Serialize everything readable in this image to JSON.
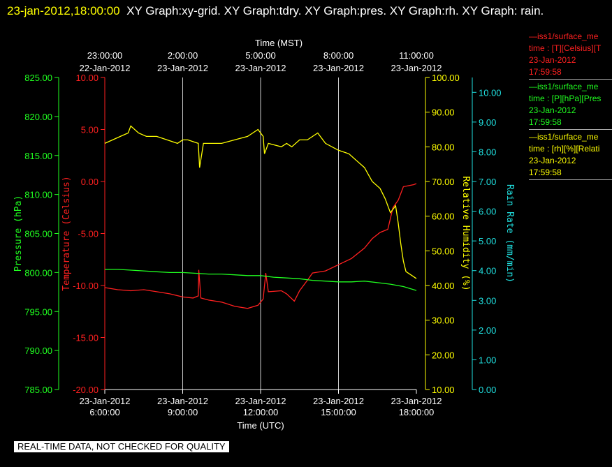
{
  "header": {
    "timestamp": "23-jan-2012,18:00:00",
    "graphs": "XY Graph:xy-grid.  XY Graph:tdry.  XY Graph:pres.  XY Graph:rh.  XY Graph: rain."
  },
  "legend": [
    {
      "line1": "—iss1/surface_me",
      "line2": "time : [T][Celsius][T",
      "date": "23-Jan-2012",
      "time": "17:59:58",
      "color": "#ff2020"
    },
    {
      "line1": "—iss1/surface_me",
      "line2": "time : [P][hPa][Pres",
      "date": "23-Jan-2012",
      "time": "17:59:58",
      "color": "#20ff20"
    },
    {
      "line1": "—iss1/surface_me",
      "line2": "time : [rh][%][Relati",
      "date": "23-Jan-2012",
      "time": "17:59:58",
      "color": "#ffff00"
    }
  ],
  "notice": "REAL-TIME DATA, NOT CHECKED FOR QUALITY",
  "chart_data": {
    "type": "line",
    "title": "",
    "x_top_title": "Time (MST)",
    "x_bottom_title": "Time (UTC)",
    "x_range_hours": [
      0,
      12
    ],
    "x_bottom_ticks": [
      {
        "h": 0,
        "date": "23-Jan-2012",
        "time": "6:00:00"
      },
      {
        "h": 3,
        "date": "23-Jan-2012",
        "time": "9:00:00"
      },
      {
        "h": 6,
        "date": "23-Jan-2012",
        "time": "12:00:00"
      },
      {
        "h": 9,
        "date": "23-Jan-2012",
        "time": "15:00:00"
      },
      {
        "h": 12,
        "date": "23-Jan-2012",
        "time": "18:00:00"
      }
    ],
    "x_top_ticks": [
      {
        "h": 0,
        "time": "23:00:00",
        "date": "22-Jan-2012"
      },
      {
        "h": 3,
        "time": "2:00:00",
        "date": "23-Jan-2012"
      },
      {
        "h": 6,
        "time": "5:00:00",
        "date": "23-Jan-2012"
      },
      {
        "h": 9,
        "time": "8:00:00",
        "date": "23-Jan-2012"
      },
      {
        "h": 12,
        "time": "11:00:00",
        "date": "23-Jan-2012"
      }
    ],
    "grid": "vertical",
    "axes": {
      "pressure": {
        "label": "Pressure (hPa)",
        "range": [
          785,
          825
        ],
        "ticks": [
          "785.00",
          "790.00",
          "795.00",
          "800.00",
          "805.00",
          "810.00",
          "815.00",
          "820.00",
          "825.00"
        ],
        "color": "#20ff20"
      },
      "temperature": {
        "label": "Temperature (Celsius)",
        "range": [
          -20,
          10
        ],
        "ticks": [
          "-20.00",
          "-15.00",
          "-10.00",
          "-5.00",
          "0.00",
          "5.00",
          "10.00"
        ],
        "color": "#ff2020"
      },
      "rh": {
        "label": "Relative Humidity (%)",
        "range": [
          10,
          100
        ],
        "ticks": [
          "10.00",
          "20.00",
          "30.00",
          "40.00",
          "50.00",
          "60.00",
          "70.00",
          "80.00",
          "90.00",
          "100.00"
        ],
        "color": "#ffff00"
      },
      "rain": {
        "label": "Rain Rate (mm/min)",
        "range": [
          0,
          10.5
        ],
        "ticks": [
          "0.00",
          "1.00",
          "2.00",
          "3.00",
          "4.00",
          "5.00",
          "6.00",
          "7.00",
          "8.00",
          "9.00",
          "10.00"
        ],
        "color": "#20e0e0"
      }
    },
    "series": [
      {
        "axis": "temperature",
        "color": "#ff2020",
        "x": [
          0,
          0.5,
          1,
          1.5,
          2,
          2.5,
          3,
          3.4,
          3.6,
          3.62,
          3.7,
          4,
          4.5,
          5,
          5.5,
          5.9,
          6.1,
          6.2,
          6.3,
          6.8,
          7,
          7.3,
          7.5,
          7.8,
          8,
          8.5,
          9,
          9.5,
          10,
          10.3,
          10.6,
          10.9,
          11.1,
          11.3,
          11.5,
          11.7,
          11.9,
          12
        ],
        "y": [
          -10.2,
          -10.4,
          -10.5,
          -10.4,
          -10.6,
          -10.8,
          -11.1,
          -11.2,
          -11.0,
          -8.5,
          -11.2,
          -11.4,
          -11.6,
          -12.0,
          -12.2,
          -11.9,
          -11.3,
          -8.8,
          -10.6,
          -10.5,
          -10.8,
          -11.5,
          -10.5,
          -9.5,
          -8.8,
          -8.6,
          -8.0,
          -7.4,
          -6.4,
          -5.5,
          -4.9,
          -4.6,
          -2.5,
          -1.8,
          -0.5,
          -0.4,
          -0.3,
          -0.2
        ]
      },
      {
        "axis": "pressure",
        "color": "#20ff20",
        "x": [
          0,
          0.5,
          1,
          1.5,
          2,
          2.5,
          3,
          3.5,
          4,
          4.5,
          5,
          5.5,
          6,
          6.5,
          7,
          7.5,
          8,
          8.5,
          9,
          9.5,
          10,
          10.5,
          11,
          11.5,
          12
        ],
        "y": [
          800.4,
          800.4,
          800.3,
          800.2,
          800.1,
          800.0,
          800.0,
          799.9,
          799.8,
          799.8,
          799.7,
          799.6,
          799.6,
          799.4,
          799.3,
          799.2,
          799.0,
          798.9,
          798.8,
          798.8,
          798.9,
          798.7,
          798.5,
          798.2,
          797.7
        ]
      },
      {
        "axis": "rh",
        "color": "#ffff00",
        "x": [
          0,
          0.3,
          0.6,
          0.9,
          1,
          1.3,
          1.6,
          2,
          2.4,
          2.8,
          3,
          3.2,
          3.6,
          3.65,
          3.8,
          4,
          4.5,
          5,
          5.5,
          5.9,
          6.1,
          6.15,
          6.3,
          6.8,
          7,
          7.2,
          7.5,
          7.8,
          8.2,
          8.5,
          9,
          9.4,
          9.7,
          10,
          10.3,
          10.6,
          10.8,
          11.0,
          11.2,
          11.3,
          11.4,
          11.5,
          11.6,
          11.8,
          12
        ],
        "y": [
          81,
          82,
          83,
          84,
          86,
          84,
          83,
          83,
          82,
          81,
          82,
          82,
          81,
          74,
          81,
          81,
          81,
          82,
          83,
          85,
          83,
          78,
          81,
          80,
          81,
          80,
          82,
          82,
          84,
          81,
          79,
          78,
          76,
          74,
          70,
          68,
          65,
          61,
          63,
          58,
          52,
          47,
          44,
          43,
          42
        ]
      },
      {
        "axis": "rain",
        "color": "#20e0e0",
        "x": [],
        "y": []
      }
    ]
  }
}
